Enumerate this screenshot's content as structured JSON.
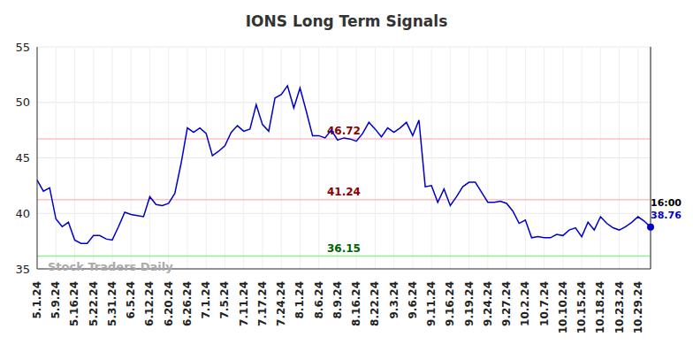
{
  "chart_data": {
    "type": "line",
    "title": "IONS Long Term Signals",
    "watermark": "Stock Traders Daily",
    "time_label": "16:00",
    "categories": [
      "5.1.24",
      null,
      null,
      "5.9.24",
      null,
      null,
      "5.16.24",
      null,
      null,
      "5.22.24",
      null,
      null,
      "5.31.24",
      null,
      null,
      "6.5.24",
      null,
      null,
      "6.12.24",
      null,
      null,
      "6.20.24",
      null,
      null,
      "6.26.24",
      null,
      null,
      "7.1.24",
      null,
      null,
      "7.5.24",
      null,
      null,
      "7.11.24",
      null,
      null,
      "7.17.24",
      null,
      null,
      "7.24.24",
      null,
      null,
      "8.1.24",
      null,
      null,
      "8.6.24",
      null,
      null,
      "8.9.24",
      null,
      null,
      "8.16.24",
      null,
      null,
      "8.22.24",
      null,
      null,
      "9.3.24",
      null,
      null,
      "9.6.24",
      null,
      null,
      "9.11.24",
      null,
      null,
      "9.16.24",
      null,
      null,
      "9.19.24",
      null,
      null,
      "9.24.24",
      null,
      null,
      "9.27.24",
      null,
      null,
      "10.2.24",
      null,
      null,
      "10.7.24",
      null,
      null,
      "10.10.24",
      null,
      null,
      "10.15.24",
      null,
      null,
      "10.18.24",
      null,
      null,
      "10.23.24",
      null,
      null,
      "10.29.24",
      null,
      null
    ],
    "series": [
      {
        "name": "IONS",
        "color": "#0000cc",
        "values": [
          43.0,
          42.0,
          42.3,
          39.5,
          38.8,
          39.2,
          37.6,
          37.3,
          37.3,
          38.0,
          38.0,
          37.7,
          37.6,
          38.8,
          40.1,
          39.9,
          39.8,
          39.7,
          41.5,
          40.8,
          40.7,
          40.9,
          41.8,
          44.5,
          47.7,
          47.3,
          47.7,
          47.2,
          45.2,
          45.6,
          46.1,
          47.3,
          47.9,
          47.4,
          47.6,
          49.8,
          48.0,
          47.4,
          50.4,
          50.7,
          51.5,
          49.5,
          51.3,
          49.2,
          47.0,
          47.0,
          46.8,
          47.5,
          46.6,
          46.8,
          46.7,
          46.5,
          47.2,
          48.2,
          47.6,
          46.9,
          47.7,
          47.3,
          47.7,
          48.2,
          47.0,
          48.4,
          42.4,
          42.5,
          41.0,
          42.2,
          40.7,
          41.5,
          42.4,
          42.8,
          42.8,
          41.9,
          41.0,
          41.0,
          41.1,
          40.9,
          40.2,
          39.1,
          39.4,
          37.8,
          37.9,
          37.8,
          37.8,
          38.1,
          38.0,
          38.5,
          38.7,
          37.9,
          39.2,
          38.5,
          39.7,
          39.1,
          38.7,
          38.5,
          38.8,
          39.2,
          39.7,
          39.3,
          38.76
        ]
      }
    ],
    "reference_lines": [
      {
        "value": 46.72,
        "color": "#ffc0c0",
        "label_color": "#8b0000"
      },
      {
        "value": 41.24,
        "color": "#ffc0c0",
        "label_color": "#8b0000"
      },
      {
        "value": 36.15,
        "color": "#90ee90",
        "label_color": "#006400"
      }
    ],
    "ylim": [
      35,
      55
    ],
    "yticks": [
      35,
      40,
      45,
      50,
      55
    ],
    "grid": true
  }
}
